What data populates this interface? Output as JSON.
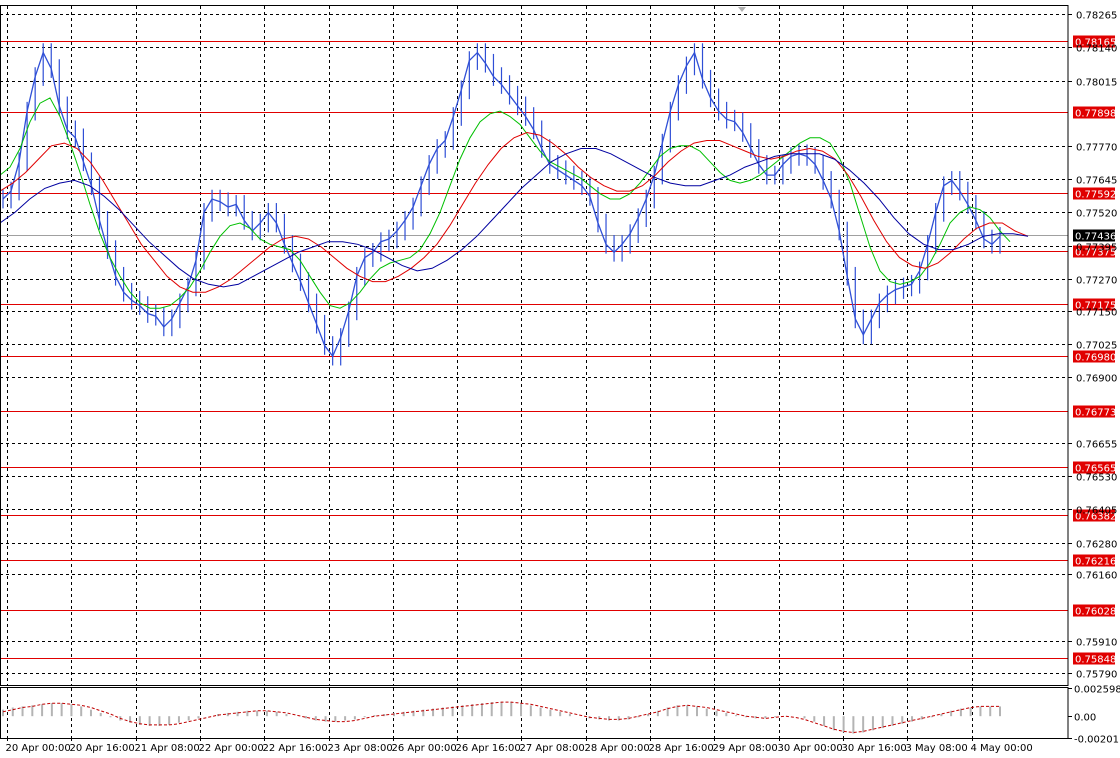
{
  "chart_data": [
    {
      "type": "line",
      "title": "",
      "xlabel": "",
      "ylabel": "",
      "ylim": [
        0.75745,
        0.78295
      ],
      "grid": true,
      "x_ticks": [
        "20 Apr 00:00",
        "20 Apr 16:00",
        "21 Apr 08:00",
        "22 Apr 00:00",
        "22 Apr 16:00",
        "23 Apr 08:00",
        "26 Apr 00:00",
        "26 Apr 16:00",
        "27 Apr 08:00",
        "28 Apr 00:00",
        "28 Apr 16:00",
        "29 Apr 08:00",
        "30 Apr 00:00",
        "30 Apr 16:00",
        "3 May 08:00",
        "4 May 00:00"
      ],
      "y_ticks": [
        "0.78265",
        "0.78140",
        "0.78015",
        "0.77770",
        "0.77645",
        "0.77520",
        "0.77395",
        "0.77270",
        "0.77150",
        "0.77025",
        "0.76900",
        "0.76655",
        "0.76530",
        "0.76405",
        "0.76280",
        "0.76160",
        "0.75910",
        "0.75790"
      ],
      "current_price": "0.77436",
      "level_lines": [
        "0.78165",
        "0.77898",
        "0.77592",
        "0.77375",
        "0.77175",
        "0.76980",
        "0.76773",
        "0.76565",
        "0.76382",
        "0.76216",
        "0.76028",
        "0.75848"
      ],
      "series": [
        {
          "values": [
            0.7757,
            0.776,
            0.7771,
            0.779,
            0.7803,
            0.7812,
            0.7806,
            0.7792,
            0.7783,
            0.778,
            0.7771,
            0.7762,
            0.7749,
            0.7738,
            0.7728,
            0.7722,
            0.7719,
            0.7717,
            0.7714,
            0.7713,
            0.7709,
            0.7712,
            0.7718,
            0.7724,
            0.7734,
            0.7752,
            0.7757,
            0.7756,
            0.7754,
            0.7755,
            0.7749,
            0.7745,
            0.7748,
            0.7752,
            0.7748,
            0.774,
            0.7733,
            0.7726,
            0.7718,
            0.771,
            0.7702,
            0.7698,
            0.7705,
            0.7715,
            0.7728,
            0.7735,
            0.7737,
            0.7741,
            0.7742,
            0.7745,
            0.7749,
            0.7754,
            0.7762,
            0.777,
            0.7776,
            0.7779,
            0.7788,
            0.7798,
            0.7809,
            0.7812,
            0.7808,
            0.7803,
            0.78,
            0.7796,
            0.7792,
            0.7788,
            0.7783,
            0.7776,
            0.777,
            0.7768,
            0.7766,
            0.7764,
            0.7762,
            0.7758,
            0.7748,
            0.774,
            0.7737,
            0.774,
            0.7744,
            0.775,
            0.7757,
            0.7766,
            0.7778,
            0.779,
            0.78,
            0.7807,
            0.7812,
            0.7802,
            0.7795,
            0.779,
            0.7787,
            0.7786,
            0.7782,
            0.7776,
            0.777,
            0.7766,
            0.7766,
            0.777,
            0.7773,
            0.7774,
            0.7773,
            0.777,
            0.7764,
            0.7757,
            0.7745,
            0.7728,
            0.7712,
            0.7706,
            0.7712,
            0.7718,
            0.7721,
            0.7723,
            0.7724,
            0.7725,
            0.773,
            0.774,
            0.7752,
            0.7762,
            0.7764,
            0.776,
            0.7755,
            0.7749,
            0.7742,
            0.774,
            0.7743
          ]
        },
        {
          "values": [
            0.7766,
            0.7769,
            0.7776,
            0.7786,
            0.7793,
            0.7795,
            0.7788,
            0.7778,
            0.7767,
            0.7755,
            0.7744,
            0.7735,
            0.7728,
            0.7722,
            0.7718,
            0.7716,
            0.7716,
            0.7717,
            0.772,
            0.7724,
            0.773,
            0.7737,
            0.7743,
            0.7747,
            0.7748,
            0.7746,
            0.7742,
            0.774,
            0.7739,
            0.7738,
            0.7734,
            0.7728,
            0.7722,
            0.7717,
            0.7716,
            0.7718,
            0.7722,
            0.7727,
            0.7731,
            0.7733,
            0.7734,
            0.7735,
            0.7738,
            0.7744,
            0.7752,
            0.7762,
            0.7772,
            0.778,
            0.7786,
            0.7789,
            0.779,
            0.7788,
            0.7785,
            0.778,
            0.7775,
            0.7771,
            0.7769,
            0.7767,
            0.7765,
            0.7762,
            0.7759,
            0.7757,
            0.7757,
            0.7759,
            0.7763,
            0.7768,
            0.7773,
            0.7776,
            0.7777,
            0.7777,
            0.7775,
            0.7771,
            0.7767,
            0.7764,
            0.7763,
            0.7764,
            0.7766,
            0.7769,
            0.7772,
            0.7775,
            0.7778,
            0.778,
            0.778,
            0.7778,
            0.7772,
            0.7763,
            0.7751,
            0.7739,
            0.773,
            0.7726,
            0.7725,
            0.7726,
            0.7728,
            0.7733,
            0.774,
            0.7748,
            0.7752,
            0.7754,
            0.7753,
            0.775,
            0.7745,
            0.7741
          ]
        },
        {
          "values": [
            0.776,
            0.7763,
            0.7767,
            0.7772,
            0.7777,
            0.7778,
            0.7776,
            0.7771,
            0.7764,
            0.7756,
            0.7748,
            0.774,
            0.7734,
            0.7728,
            0.7724,
            0.7722,
            0.7722,
            0.7724,
            0.7727,
            0.7731,
            0.7735,
            0.7739,
            0.7742,
            0.7743,
            0.7742,
            0.7739,
            0.7735,
            0.7731,
            0.7728,
            0.7726,
            0.7726,
            0.7728,
            0.7731,
            0.7735,
            0.774,
            0.7747,
            0.7755,
            0.7763,
            0.777,
            0.7776,
            0.778,
            0.7782,
            0.7781,
            0.7778,
            0.7774,
            0.7769,
            0.7765,
            0.7762,
            0.776,
            0.776,
            0.7762,
            0.7766,
            0.7771,
            0.7775,
            0.7778,
            0.7779,
            0.7779,
            0.7777,
            0.7775,
            0.7773,
            0.7772,
            0.7773,
            0.7775,
            0.7776,
            0.7775,
            0.7772,
            0.7766,
            0.7758,
            0.7749,
            0.7741,
            0.7735,
            0.7732,
            0.7731,
            0.7733,
            0.7737,
            0.7742,
            0.7746,
            0.7748,
            0.7748,
            0.7745,
            0.7743
          ]
        },
        {
          "values": [
            0.7748,
            0.7752,
            0.7757,
            0.7761,
            0.7763,
            0.7764,
            0.7762,
            0.7758,
            0.7753,
            0.7747,
            0.7741,
            0.7736,
            0.7731,
            0.7727,
            0.7725,
            0.7724,
            0.7725,
            0.7728,
            0.7731,
            0.7734,
            0.7737,
            0.7739,
            0.7741,
            0.7741,
            0.774,
            0.7738,
            0.7735,
            0.7732,
            0.773,
            0.7731,
            0.7734,
            0.7738,
            0.7743,
            0.7749,
            0.7755,
            0.7761,
            0.7766,
            0.7771,
            0.7774,
            0.7776,
            0.7776,
            0.7774,
            0.7771,
            0.7768,
            0.7765,
            0.7763,
            0.7762,
            0.7762,
            0.7764,
            0.7766,
            0.7769,
            0.7771,
            0.7773,
            0.7774,
            0.7774,
            0.7774,
            0.7772,
            0.7768,
            0.7763,
            0.7757,
            0.775,
            0.7744,
            0.774,
            0.7738,
            0.7738,
            0.774,
            0.7743,
            0.7744,
            0.7744,
            0.7743
          ]
        }
      ]
    },
    {
      "type": "bar",
      "ylim": [
        -0.002011,
        0.002598
      ],
      "y_ticks": [
        "0.002598",
        "0.00",
        "-0.002011"
      ],
      "values": [
        0.0006,
        0.0008,
        0.0009,
        0.001,
        0.0011,
        0.0012,
        0.0012,
        0.0011,
        0.0009,
        0.0006,
        0.0003,
        -0.0001,
        -0.0004,
        -0.0006,
        -0.0008,
        -0.0009,
        -0.0009,
        -0.0008,
        -0.0006,
        -0.0004,
        -0.0002,
        0.0,
        0.0002,
        0.0003,
        0.0004,
        0.0005,
        0.0005,
        0.0005,
        0.0004,
        0.0002,
        0.0,
        -0.0002,
        -0.0004,
        -0.0005,
        -0.0005,
        -0.0004,
        -0.0003,
        -0.0001,
        0.0001,
        0.0002,
        0.0003,
        0.0004,
        0.0005,
        0.0006,
        0.0007,
        0.0008,
        0.0009,
        0.001,
        0.0011,
        0.0012,
        0.0013,
        0.0013,
        0.0013,
        0.0012,
        0.001,
        0.0008,
        0.0006,
        0.0004,
        0.0002,
        0.0,
        -0.0002,
        -0.0003,
        -0.0004,
        -0.0004,
        -0.0003,
        -0.0001,
        0.0002,
        0.0005,
        0.0008,
        0.001,
        0.001,
        0.0009,
        0.0007,
        0.0005,
        0.0003,
        0.0001,
        -0.0001,
        -0.0002,
        -0.0002,
        -0.0001,
        0.0,
        0.0,
        -0.0002,
        -0.0005,
        -0.0009,
        -0.0013,
        -0.0015,
        -0.0016,
        -0.0015,
        -0.0013,
        -0.0011,
        -0.0009,
        -0.0007,
        -0.0005,
        -0.0003,
        -0.0001,
        0.0002,
        0.0005,
        0.0007,
        0.0008,
        0.0009,
        0.0009,
        0.0009
      ],
      "signal": [
        0.0004,
        0.0006,
        0.0008,
        0.0009,
        0.0011,
        0.0012,
        0.0012,
        0.0011,
        0.001,
        0.0008,
        0.0005,
        0.0002,
        -0.0002,
        -0.0005,
        -0.0007,
        -0.0008,
        -0.0008,
        -0.0008,
        -0.0007,
        -0.0005,
        -0.0003,
        -0.0001,
        0.0001,
        0.0002,
        0.0003,
        0.0004,
        0.0005,
        0.0005,
        0.0004,
        0.0003,
        0.0001,
        -0.0001,
        -0.0003,
        -0.0004,
        -0.0005,
        -0.0005,
        -0.0004,
        -0.0002,
        0.0,
        0.0001,
        0.0002,
        0.0003,
        0.0004,
        0.0005,
        0.0006,
        0.0007,
        0.0008,
        0.0009,
        0.001,
        0.0011,
        0.0012,
        0.0013,
        0.0013,
        0.0012,
        0.0011,
        0.0009,
        0.0007,
        0.0005,
        0.0003,
        0.0001,
        -0.0001,
        -0.0002,
        -0.0003,
        -0.0003,
        -0.0002,
        0.0,
        0.0002,
        0.0004,
        0.0007,
        0.0009,
        0.001,
        0.0009,
        0.0008,
        0.0006,
        0.0004,
        0.0002,
        0.0,
        -0.0001,
        -0.0002,
        -0.0001,
        0.0,
        -0.0001,
        -0.0003,
        -0.0006,
        -0.0009,
        -0.0012,
        -0.0014,
        -0.0015,
        -0.0014,
        -0.0012,
        -0.001,
        -0.0008,
        -0.0006,
        -0.0004,
        -0.0002,
        0.0,
        0.0002,
        0.0004,
        0.0006,
        0.0008,
        0.0009,
        0.0009,
        0.0009
      ]
    }
  ],
  "colors": {
    "price": "#2f4fd6",
    "fast_ma": "#00c000",
    "mid_ma": "#e00000",
    "slow_ma": "#0000a0",
    "level": "#e00000",
    "level_label_bg": "#e00000",
    "current_label_bg": "#000000",
    "grid": "#000000",
    "hist": "#b4b4b4",
    "signal": "#c00000"
  }
}
